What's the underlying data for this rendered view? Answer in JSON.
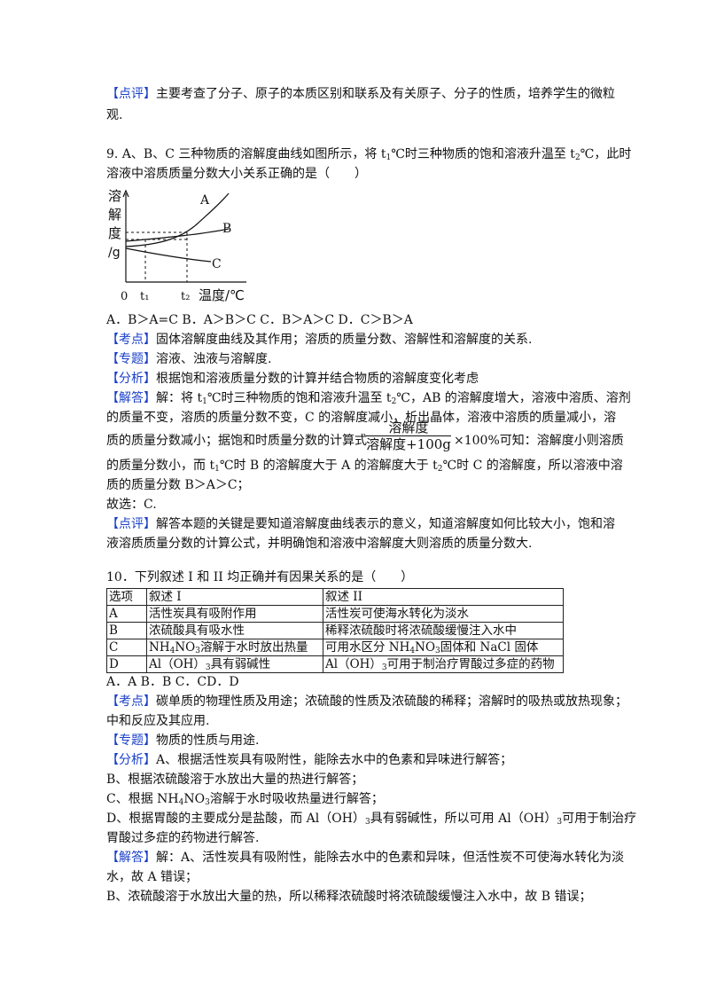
{
  "review8": {
    "tag": "【点评】",
    "line1": "主要考查了分子、原子的本质区别和联系及有关原子、分子的性质，培养学生的微粒",
    "line2": "观."
  },
  "q9": {
    "stem1_a": "9. A、B、C 三种物质的溶解度曲线如图所示，将 t",
    "stem1_b": "℃时三种物质的饱和溶液升温至 t",
    "stem1_c": "℃，此时",
    "stem2": "溶液中溶质质量分数大小关系正确的是（　　）",
    "sub1": "1",
    "sub2": "2",
    "graph": {
      "ylabel": [
        "溶",
        "解",
        "度",
        "/g"
      ],
      "origin": "0",
      "t1": "t₁",
      "t2": "t₂",
      "xlabel": "温度/℃",
      "curveA": "A",
      "curveB": "B",
      "curveC": "C"
    },
    "options": "A．B＞A=C  B．A＞B＞C C．B＞A＞C D．C＞B＞A",
    "kaodian_tag": "【考点】",
    "kaodian": "固体溶解度曲线及其作用；溶质的质量分数、溶解性和溶解度的关系.",
    "zhuanti_tag": "【专题】",
    "zhuanti": "溶液、浊液与溶解度.",
    "fenxi_tag": "【分析】",
    "fenxi": "根据饱和溶液质量分数的计算并结合物质的溶解度变化考虑",
    "jieda_tag": "【解答】",
    "j1_a": "解：将 t",
    "j1_b": "℃时三种物质的饱和溶液升温至 t",
    "j1_c": "℃，AB 的溶解度增大，溶液中溶质、溶剂",
    "j2": "的质量不变，溶质的质量分数不变，C 的溶解度减小，析出晶体，溶液中溶质的质量减小，溶",
    "j3_a": "质的质量分数减小；据饱和时质量分数的计算式",
    "j3_b": "×100%可知：溶解度小则溶质",
    "frac_num": "溶解度",
    "frac_den": "溶解度+100g",
    "j4_a": "的质量分数小，而 t",
    "j4_b": "℃时 B 的溶解度大于 A 的溶解度大于 t",
    "j4_c": "℃时 C 的溶解度，所以溶液中溶",
    "j5": "质的质量分数 B＞A＞C；",
    "answer": "故选：C.",
    "dianping_tag": "【点评】",
    "dianping1": "解答本题的关键是要知道溶解度曲线表示的意义，知道溶解度如何比较大小，饱和溶",
    "dianping2": "液溶质质量分数的计算公式，并明确饱和溶液中溶解度大则溶质的质量分数大."
  },
  "q10": {
    "stem": "10．下列叙述 I 和 II 均正确并有因果关系的是（　　）",
    "table": {
      "header": [
        "选项",
        "叙述 I",
        "叙述 II"
      ],
      "rows": [
        {
          "opt": "A",
          "s1": "活性炭具有吸附作用",
          "s2": "活性炭可使海水转化为淡水"
        },
        {
          "opt": "B",
          "s1": "浓硫酸具有吸水性",
          "s2": "稀释浓硫酸时将浓硫酸缓慢注入水中"
        },
        {
          "opt": "C",
          "s1_a": "NH",
          "s1_b": "NO",
          "s1_c": "溶解于水时放出热量",
          "s2_a": "可用水区分 NH",
          "s2_b": "NO",
          "s2_c": "固体和 NaCl 固体",
          "sub4": "4",
          "sub3": "3"
        },
        {
          "opt": "D",
          "s1_a": "Al（OH）",
          "s1_b": "具有弱碱性",
          "s2_a": "Al（OH）",
          "s2_b": "可用于制治疗胃酸过多症的药物",
          "sub3": "3"
        }
      ]
    },
    "options": "A．A    B．B    C．CD．D",
    "kaodian_tag": "【考点】",
    "kaodian1": "碳单质的物理性质及用途；浓硫酸的性质及浓硫酸的稀释；溶解时的吸热或放热现象；",
    "kaodian2": "中和反应及其应用.",
    "zhuanti_tag": "【专题】",
    "zhuanti": "物质的性质与用途.",
    "fenxi_tag": "【分析】",
    "fenxi1": "A、根据活性炭具有吸附性，能除去水中的色素和异味进行解答；",
    "fenxi2": "B、根据浓硫酸溶于水放出大量的热进行解答；",
    "fenxi3_a": "C、根据 NH",
    "fenxi3_b": "NO",
    "fenxi3_c": "溶解于水时吸收热量进行解答；",
    "fenxi4_a": "D、根据胃酸的主要成分是盐酸，而 Al（OH）",
    "fenxi4_b": "具有弱碱性，所以可用 Al（OH）",
    "fenxi4_c": "可用于制治疗",
    "fenxi5": "胃酸过多症的药物进行解答.",
    "jieda_tag": "【解答】",
    "jieda1": "解：A、活性炭具有吸附性，能除去水中的色素和异味，但活性炭不可使海水转化为淡",
    "jieda2": "水，故 A 错误；",
    "jieda3": "B、浓硫酸溶于水放出大量的热，所以稀释浓硫酸时将浓硫酸缓慢注入水中，故 B 错误；",
    "sub4": "4",
    "sub3": "3"
  }
}
